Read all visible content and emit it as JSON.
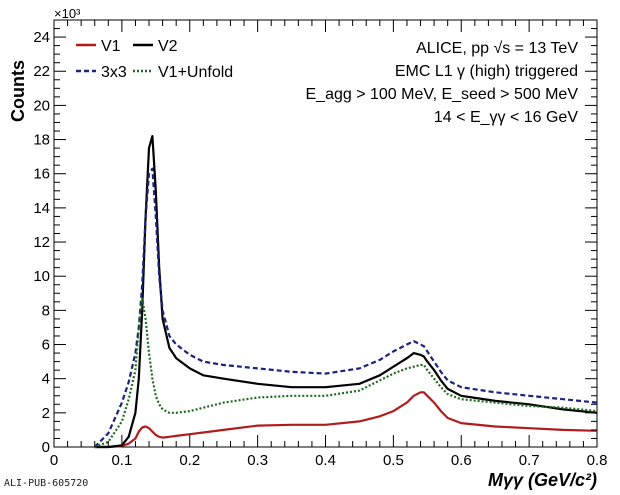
{
  "figure_id": "ALI-PUB-605720",
  "colors": {
    "V1": "#b01c1c",
    "V2": "#000000",
    "3x3": "#1a237e",
    "V1+Unfold": "#1b6b1b"
  },
  "annotations": {
    "line1": "ALICE, pp √s = 13 TeV",
    "line2": "EMC L1 γ (high) triggered",
    "line3": "E_agg > 100 MeV, E_seed > 500 MeV",
    "line4": "14 < E_γγ < 16 GeV"
  },
  "chart_data": {
    "type": "line",
    "xlabel": "Mγγ (GeV/c²)",
    "ylabel": "Counts",
    "y_multiplier": "×10³",
    "xlim": [
      0,
      0.8
    ],
    "ylim": [
      0,
      25
    ],
    "x_ticks": [
      "0",
      "0.1",
      "0.2",
      "0.3",
      "0.4",
      "0.5",
      "0.6",
      "0.7",
      "0.8"
    ],
    "y_ticks": [
      "0",
      "2",
      "4",
      "6",
      "8",
      "10",
      "12",
      "14",
      "16",
      "18",
      "20",
      "22",
      "24"
    ],
    "legend_position": "top-left",
    "x": [
      0.06,
      0.08,
      0.1,
      0.11,
      0.12,
      0.125,
      0.13,
      0.135,
      0.14,
      0.145,
      0.15,
      0.155,
      0.16,
      0.17,
      0.18,
      0.2,
      0.22,
      0.25,
      0.3,
      0.35,
      0.4,
      0.45,
      0.48,
      0.5,
      0.52,
      0.53,
      0.54,
      0.545,
      0.55,
      0.56,
      0.57,
      0.58,
      0.6,
      0.65,
      0.7,
      0.75,
      0.8
    ],
    "series": [
      {
        "name": "V1",
        "style": "solid",
        "values": [
          0.0,
          0.0,
          0.05,
          0.2,
          0.5,
          0.9,
          1.15,
          1.2,
          1.1,
          0.9,
          0.7,
          0.6,
          0.55,
          0.6,
          0.65,
          0.75,
          0.85,
          1.0,
          1.25,
          1.3,
          1.3,
          1.5,
          1.8,
          2.1,
          2.6,
          3.0,
          3.2,
          3.2,
          3.0,
          2.6,
          2.1,
          1.7,
          1.4,
          1.2,
          1.1,
          1.0,
          0.95
        ]
      },
      {
        "name": "V2",
        "style": "solid",
        "values": [
          0.0,
          0.0,
          0.1,
          0.6,
          2.0,
          4.0,
          8.0,
          13.5,
          17.5,
          18.2,
          15.0,
          10.5,
          7.5,
          5.8,
          5.2,
          4.6,
          4.2,
          4.0,
          3.7,
          3.5,
          3.5,
          3.7,
          4.2,
          4.7,
          5.2,
          5.5,
          5.4,
          5.3,
          5.0,
          4.5,
          3.9,
          3.4,
          3.0,
          2.7,
          2.5,
          2.2,
          2.0
        ]
      },
      {
        "name": "3x3",
        "style": "dashed",
        "values": [
          0.0,
          0.8,
          2.6,
          3.8,
          5.5,
          7.0,
          9.5,
          13.5,
          16.0,
          16.3,
          13.5,
          10.0,
          8.0,
          6.5,
          6.0,
          5.4,
          5.0,
          4.8,
          4.6,
          4.4,
          4.3,
          4.6,
          5.1,
          5.6,
          6.0,
          6.2,
          6.0,
          5.9,
          5.6,
          5.0,
          4.4,
          3.9,
          3.5,
          3.2,
          3.0,
          2.8,
          2.6
        ]
      },
      {
        "name": "V1+Unfold",
        "style": "dotted",
        "values": [
          0.0,
          0.3,
          1.5,
          2.8,
          4.5,
          7.0,
          8.7,
          7.5,
          5.5,
          4.0,
          3.0,
          2.5,
          2.2,
          2.0,
          2.0,
          2.1,
          2.3,
          2.6,
          2.9,
          3.0,
          3.0,
          3.3,
          3.9,
          4.3,
          4.6,
          4.7,
          4.8,
          4.8,
          4.5,
          4.0,
          3.5,
          3.1,
          2.8,
          2.6,
          2.4,
          2.3,
          2.1
        ]
      }
    ]
  }
}
